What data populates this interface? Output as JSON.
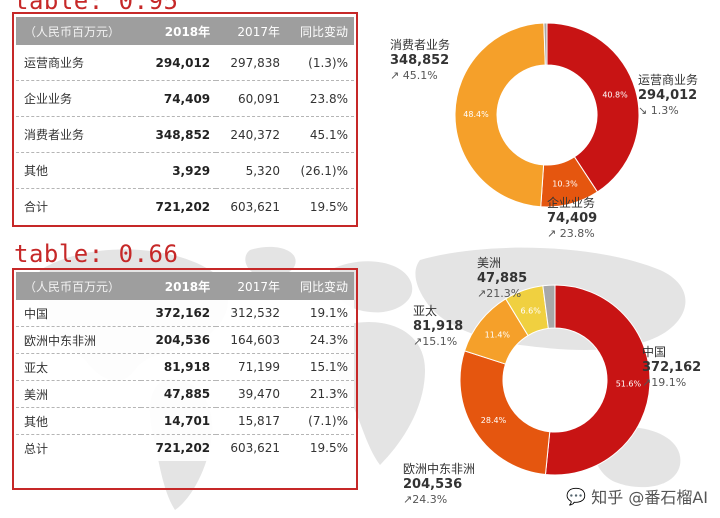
{
  "detections": [
    {
      "label": "table: 0.95"
    },
    {
      "label": "table: 0.66"
    }
  ],
  "table1": {
    "headers": [
      "（人民币百万元）",
      "2018年",
      "2017年",
      "同比变动"
    ],
    "rows": [
      [
        "运营商业务",
        "294,012",
        "297,838",
        "(1.3)%"
      ],
      [
        "企业业务",
        "74,409",
        "60,091",
        "23.8%"
      ],
      [
        "消费者业务",
        "348,852",
        "240,372",
        "45.1%"
      ],
      [
        "其他",
        "3,929",
        "5,320",
        "(26.1)%"
      ],
      [
        "合计",
        "721,202",
        "603,621",
        "19.5%"
      ]
    ]
  },
  "table2": {
    "headers": [
      "（人民币百万元）",
      "2018年",
      "2017年",
      "同比变动"
    ],
    "rows": [
      [
        "中国",
        "372,162",
        "312,532",
        "19.1%"
      ],
      [
        "欧洲中东非洲",
        "204,536",
        "164,603",
        "24.3%"
      ],
      [
        "亚太",
        "81,918",
        "71,199",
        "15.1%"
      ],
      [
        "美洲",
        "47,885",
        "39,470",
        "21.3%"
      ],
      [
        "其他",
        "14,701",
        "15,817",
        "(7.1)%"
      ],
      [
        "总计",
        "721,202",
        "603,621",
        "19.5%"
      ]
    ]
  },
  "chart_data": [
    {
      "type": "pie",
      "variant": "donut",
      "series": [
        {
          "name": "运营商业务",
          "value": 294012,
          "percent": 40.8,
          "slice_label": "40.8%",
          "value_label": "294,012",
          "change": "↘ 1.3%",
          "color": "#c81414"
        },
        {
          "name": "企业业务",
          "value": 74409,
          "percent": 10.3,
          "slice_label": "10.3%",
          "value_label": "74,409",
          "change": "↗ 23.8%",
          "color": "#e5560f"
        },
        {
          "name": "消费者业务",
          "value": 348852,
          "percent": 48.4,
          "slice_label": "48.4%",
          "value_label": "348,852",
          "change": "↗ 45.1%",
          "color": "#f5a02a"
        },
        {
          "name": "其他",
          "value": 3929,
          "percent": 0.5,
          "slice_label": "",
          "value_label": "",
          "change": "",
          "color": "#a8a8a8"
        }
      ]
    },
    {
      "type": "pie",
      "variant": "donut",
      "series": [
        {
          "name": "中国",
          "value": 372162,
          "percent": 51.6,
          "slice_label": "51.6%",
          "value_label": "372,162",
          "change": "↗19.1%",
          "color": "#c81414"
        },
        {
          "name": "欧洲中东非洲",
          "value": 204536,
          "percent": 28.4,
          "slice_label": "28.4%",
          "value_label": "204,536",
          "change": "↗24.3%",
          "color": "#e5560f"
        },
        {
          "name": "亚太",
          "value": 81918,
          "percent": 11.4,
          "slice_label": "11.4%",
          "value_label": "81,918",
          "change": "↗15.1%",
          "color": "#f5a02a"
        },
        {
          "name": "美洲",
          "value": 47885,
          "percent": 6.6,
          "slice_label": "6.6%",
          "value_label": "47,885",
          "change": "↗21.3%",
          "color": "#f0d040"
        },
        {
          "name": "其他",
          "value": 14701,
          "percent": 2.0,
          "slice_label": "",
          "value_label": "",
          "change": "",
          "color": "#a8a8a8"
        }
      ]
    }
  ],
  "watermark": {
    "text": "知乎 @番石榴AI"
  }
}
